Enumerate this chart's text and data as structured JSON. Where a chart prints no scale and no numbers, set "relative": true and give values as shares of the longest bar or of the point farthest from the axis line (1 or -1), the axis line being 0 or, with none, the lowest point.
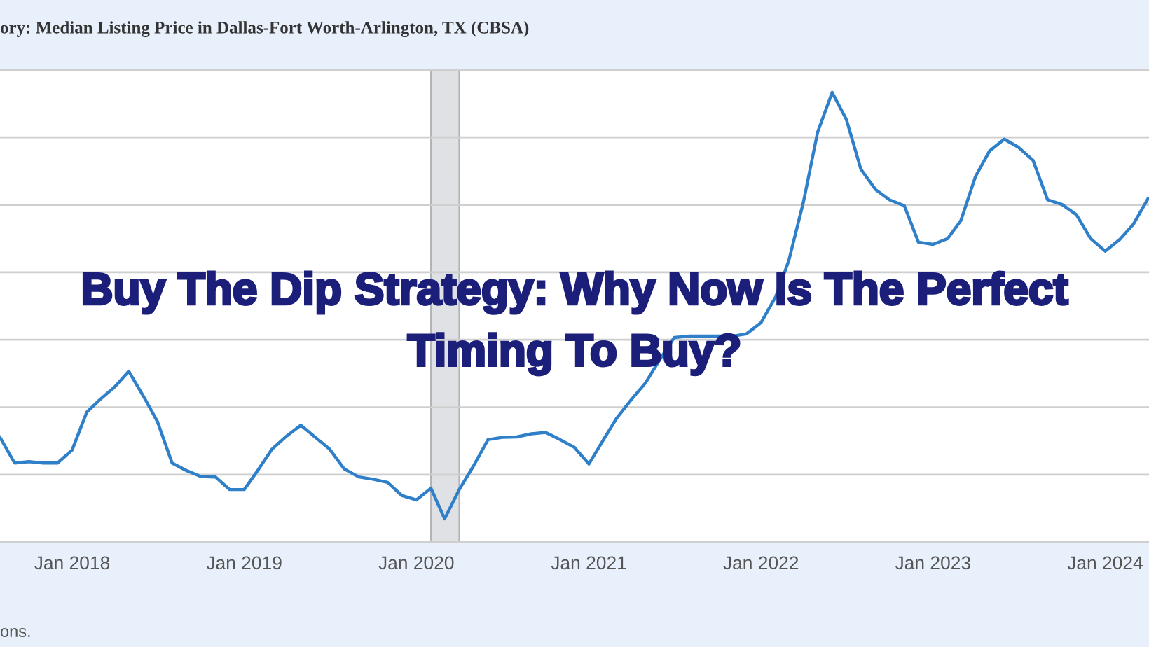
{
  "chart_data": {
    "type": "line",
    "title": "ory: Median Listing Price in Dallas-Fort Worth-Arlington, TX (CBSA)",
    "annotations": [
      "Buy The Dip Strategy: Why Now Is The Perfect Timing To Buy?",
      "ons."
    ],
    "relative": true,
    "grid": "y",
    "marker": "none",
    "line_style": "solid",
    "x": [
      "2017-08",
      "2017-09",
      "2017-10",
      "2017-11",
      "2017-12",
      "2018-01",
      "2018-02",
      "2018-03",
      "2018-04",
      "2018-05",
      "2018-06",
      "2018-07",
      "2018-08",
      "2018-09",
      "2018-10",
      "2018-11",
      "2018-12",
      "2019-01",
      "2019-02",
      "2019-03",
      "2019-04",
      "2019-05",
      "2019-06",
      "2019-07",
      "2019-08",
      "2019-09",
      "2019-10",
      "2019-11",
      "2019-12",
      "2020-01",
      "2020-02",
      "2020-03",
      "2020-04",
      "2020-05",
      "2020-06",
      "2020-07",
      "2020-08",
      "2020-09",
      "2020-10",
      "2020-11",
      "2020-12",
      "2021-01",
      "2021-02",
      "2021-03",
      "2021-04",
      "2021-05",
      "2021-06",
      "2021-07",
      "2021-08",
      "2021-09",
      "2021-10",
      "2021-11",
      "2021-12",
      "2022-01",
      "2022-02",
      "2022-03",
      "2022-04",
      "2022-05",
      "2022-06",
      "2022-07",
      "2022-08",
      "2022-09",
      "2022-10",
      "2022-11",
      "2022-12",
      "2023-01",
      "2023-02",
      "2023-03",
      "2023-04",
      "2023-05",
      "2023-06",
      "2023-07",
      "2023-08",
      "2023-09",
      "2023-10",
      "2023-11",
      "2023-12",
      "2024-01",
      "2024-02",
      "2024-03",
      "2024-04"
    ],
    "series": [
      {
        "color": "#2f7fc9",
        "values": [
          0.233,
          0.176,
          0.179,
          0.176,
          0.176,
          0.205,
          0.289,
          0.317,
          0.345,
          0.38,
          0.325,
          0.268,
          0.176,
          0.159,
          0.146,
          0.145,
          0.117,
          0.117,
          0.163,
          0.207,
          0.236,
          0.26,
          0.233,
          0.207,
          0.163,
          0.145,
          0.14,
          0.133,
          0.104,
          0.094,
          0.12,
          0.052,
          0.117,
          0.169,
          0.228,
          0.233,
          0.234,
          0.241,
          0.244,
          0.228,
          0.211,
          0.174,
          0.228,
          0.276,
          0.317,
          0.354,
          0.407,
          0.455,
          0.458,
          0.458,
          0.458,
          0.458,
          0.463,
          0.488,
          0.545,
          0.626,
          0.756,
          0.911,
          1.0,
          0.94,
          0.829,
          0.784,
          0.761,
          0.748,
          0.667,
          0.662,
          0.675,
          0.715,
          0.813,
          0.87,
          0.896,
          0.878,
          0.849,
          0.761,
          0.751,
          0.728,
          0.675,
          0.647,
          0.673,
          0.707,
          0.764
        ]
      }
    ],
    "xlim": [
      "2017-08-01",
      "2024-04-03"
    ],
    "xticks": [
      {
        "value": "2018-01-01",
        "label": "Jan 2018"
      },
      {
        "value": "2019-01-01",
        "label": "Jan 2019"
      },
      {
        "value": "2020-01-01",
        "label": "Jan 2020"
      },
      {
        "value": "2021-01-01",
        "label": "Jan 2021"
      },
      {
        "value": "2022-01-01",
        "label": "Jan 2022"
      },
      {
        "value": "2023-01-01",
        "label": "Jan 2023"
      },
      {
        "value": "2024-01-01",
        "label": "Jan 2024"
      }
    ],
    "bands": [
      {
        "axis": "x",
        "from": "2020-02-01",
        "to": "2020-04-01",
        "color": "#dfe1e4"
      }
    ]
  }
}
